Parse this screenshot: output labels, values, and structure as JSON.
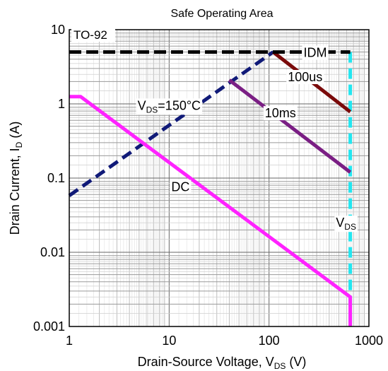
{
  "chart_data": {
    "type": "line",
    "title": "Safe Operating Area",
    "xlabel": {
      "text": "Drain-Source Voltage, V",
      "sub": "DS",
      "suffix": " (V)"
    },
    "ylabel": {
      "text": "Drain Current, I",
      "sub": "D",
      "suffix": " (A)"
    },
    "x_scale": "log",
    "y_scale": "log",
    "xlim": [
      1,
      1000
    ],
    "ylim": [
      0.001,
      10
    ],
    "x_ticks": [
      {
        "value": 1,
        "label": "1"
      },
      {
        "value": 10,
        "label": "10"
      },
      {
        "value": 100,
        "label": "100"
      },
      {
        "value": 1000,
        "label": "1000"
      }
    ],
    "y_ticks": [
      {
        "value": 0.001,
        "label": "0.001"
      },
      {
        "value": 0.01,
        "label": "0.01"
      },
      {
        "value": 0.1,
        "label": "0.1"
      },
      {
        "value": 1,
        "label": "1"
      },
      {
        "value": 10,
        "label": "10"
      }
    ],
    "grid": true,
    "package_label": "TO-92",
    "series": [
      {
        "name": "IDM",
        "color": "#000000",
        "dash": true,
        "points": [
          [
            1,
            5
          ],
          [
            650,
            5
          ]
        ]
      },
      {
        "name": "100us",
        "color": "#7a0a0a",
        "dash": false,
        "points": [
          [
            110,
            5
          ],
          [
            650,
            0.78
          ]
        ]
      },
      {
        "name": "10ms",
        "color": "#7a1e84",
        "dash": false,
        "points": [
          [
            40,
            2.1
          ],
          [
            650,
            0.12
          ]
        ]
      },
      {
        "name": "DC",
        "color": "#ff22ff",
        "dash": false,
        "points": [
          [
            1,
            1.25
          ],
          [
            1.3,
            1.25
          ],
          [
            650,
            0.0025
          ],
          [
            650,
            0.001
          ]
        ]
      },
      {
        "name": "VDS=150°C",
        "color": "#101a78",
        "dash": true,
        "points": [
          [
            1,
            0.058
          ],
          [
            110,
            5
          ]
        ]
      },
      {
        "name": "VDS",
        "color": "#22e6f0",
        "dash": true,
        "points": [
          [
            650,
            5
          ],
          [
            650,
            0.001
          ]
        ]
      }
    ],
    "annotations": [
      {
        "id": "idm",
        "text": "IDM",
        "sub": "",
        "suffix": "",
        "x": 290,
        "y": 4.9
      },
      {
        "id": "us100",
        "text": "100us",
        "sub": "",
        "suffix": "",
        "x": 230,
        "y": 2.3
      },
      {
        "id": "ms10",
        "text": "10ms",
        "sub": "",
        "suffix": "",
        "x": 130,
        "y": 0.75
      },
      {
        "id": "vds150",
        "text": "V",
        "sub": "DS",
        "suffix": "=150°C",
        "x": 10,
        "y": 0.95
      },
      {
        "id": "dc",
        "text": "DC",
        "sub": "",
        "suffix": "",
        "x": 13,
        "y": 0.076
      },
      {
        "id": "vds",
        "text": "V",
        "sub": "DS",
        "suffix": "",
        "x": 590,
        "y": 0.025
      }
    ]
  }
}
